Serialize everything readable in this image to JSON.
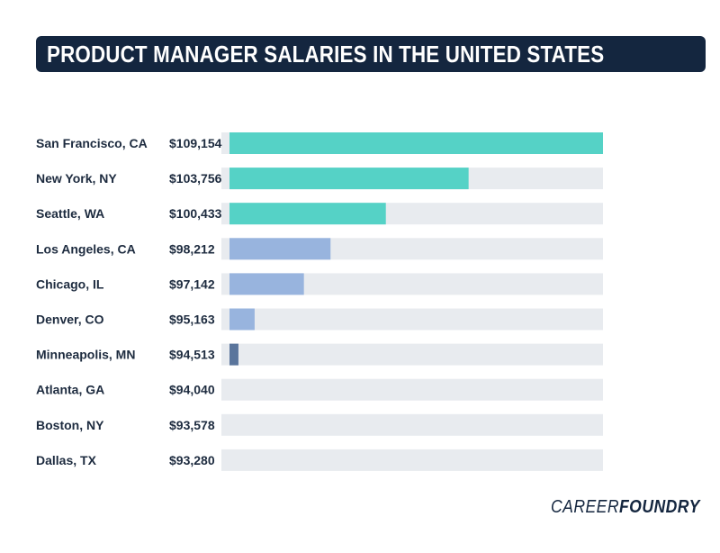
{
  "title": "PRODUCT MANAGER SALARIES IN THE UNITED STATES",
  "logo": {
    "part1": "CAREER",
    "part2": "FOUNDRY"
  },
  "colors": {
    "track": "#e8ebef",
    "tier_high": "#55d2c6",
    "tier_mid": "#98b4de",
    "tier_low": "#5a759c",
    "title_bg": "#14263f",
    "text": "#1d2b3f"
  },
  "chart_data": {
    "type": "bar",
    "orientation": "horizontal",
    "title": "PRODUCT MANAGER SALARIES IN THE UNITED STATES",
    "categories": [
      "San Francisco, CA",
      "New York, NY",
      "Seattle, WA",
      "Los Angeles, CA",
      "Chicago, IL",
      "Denver, CO",
      "Minneapolis, MN",
      "Atlanta, GA",
      "Boston, NY",
      "Dallas, TX"
    ],
    "values": [
      109154,
      103756,
      100433,
      98212,
      97142,
      95163,
      94513,
      94040,
      93578,
      93280
    ],
    "value_labels": [
      "$109,154",
      "$103,756",
      "$100,433",
      "$98,212",
      "$97,142",
      "$95,163",
      "$94,513",
      "$94,040",
      "$93,578",
      "$93,280"
    ],
    "color_tiers": [
      "high",
      "high",
      "high",
      "mid",
      "mid",
      "mid",
      "low",
      "low",
      "low",
      "low"
    ],
    "axis_range": [
      0,
      109154
    ],
    "grid": false,
    "legend": "none"
  }
}
